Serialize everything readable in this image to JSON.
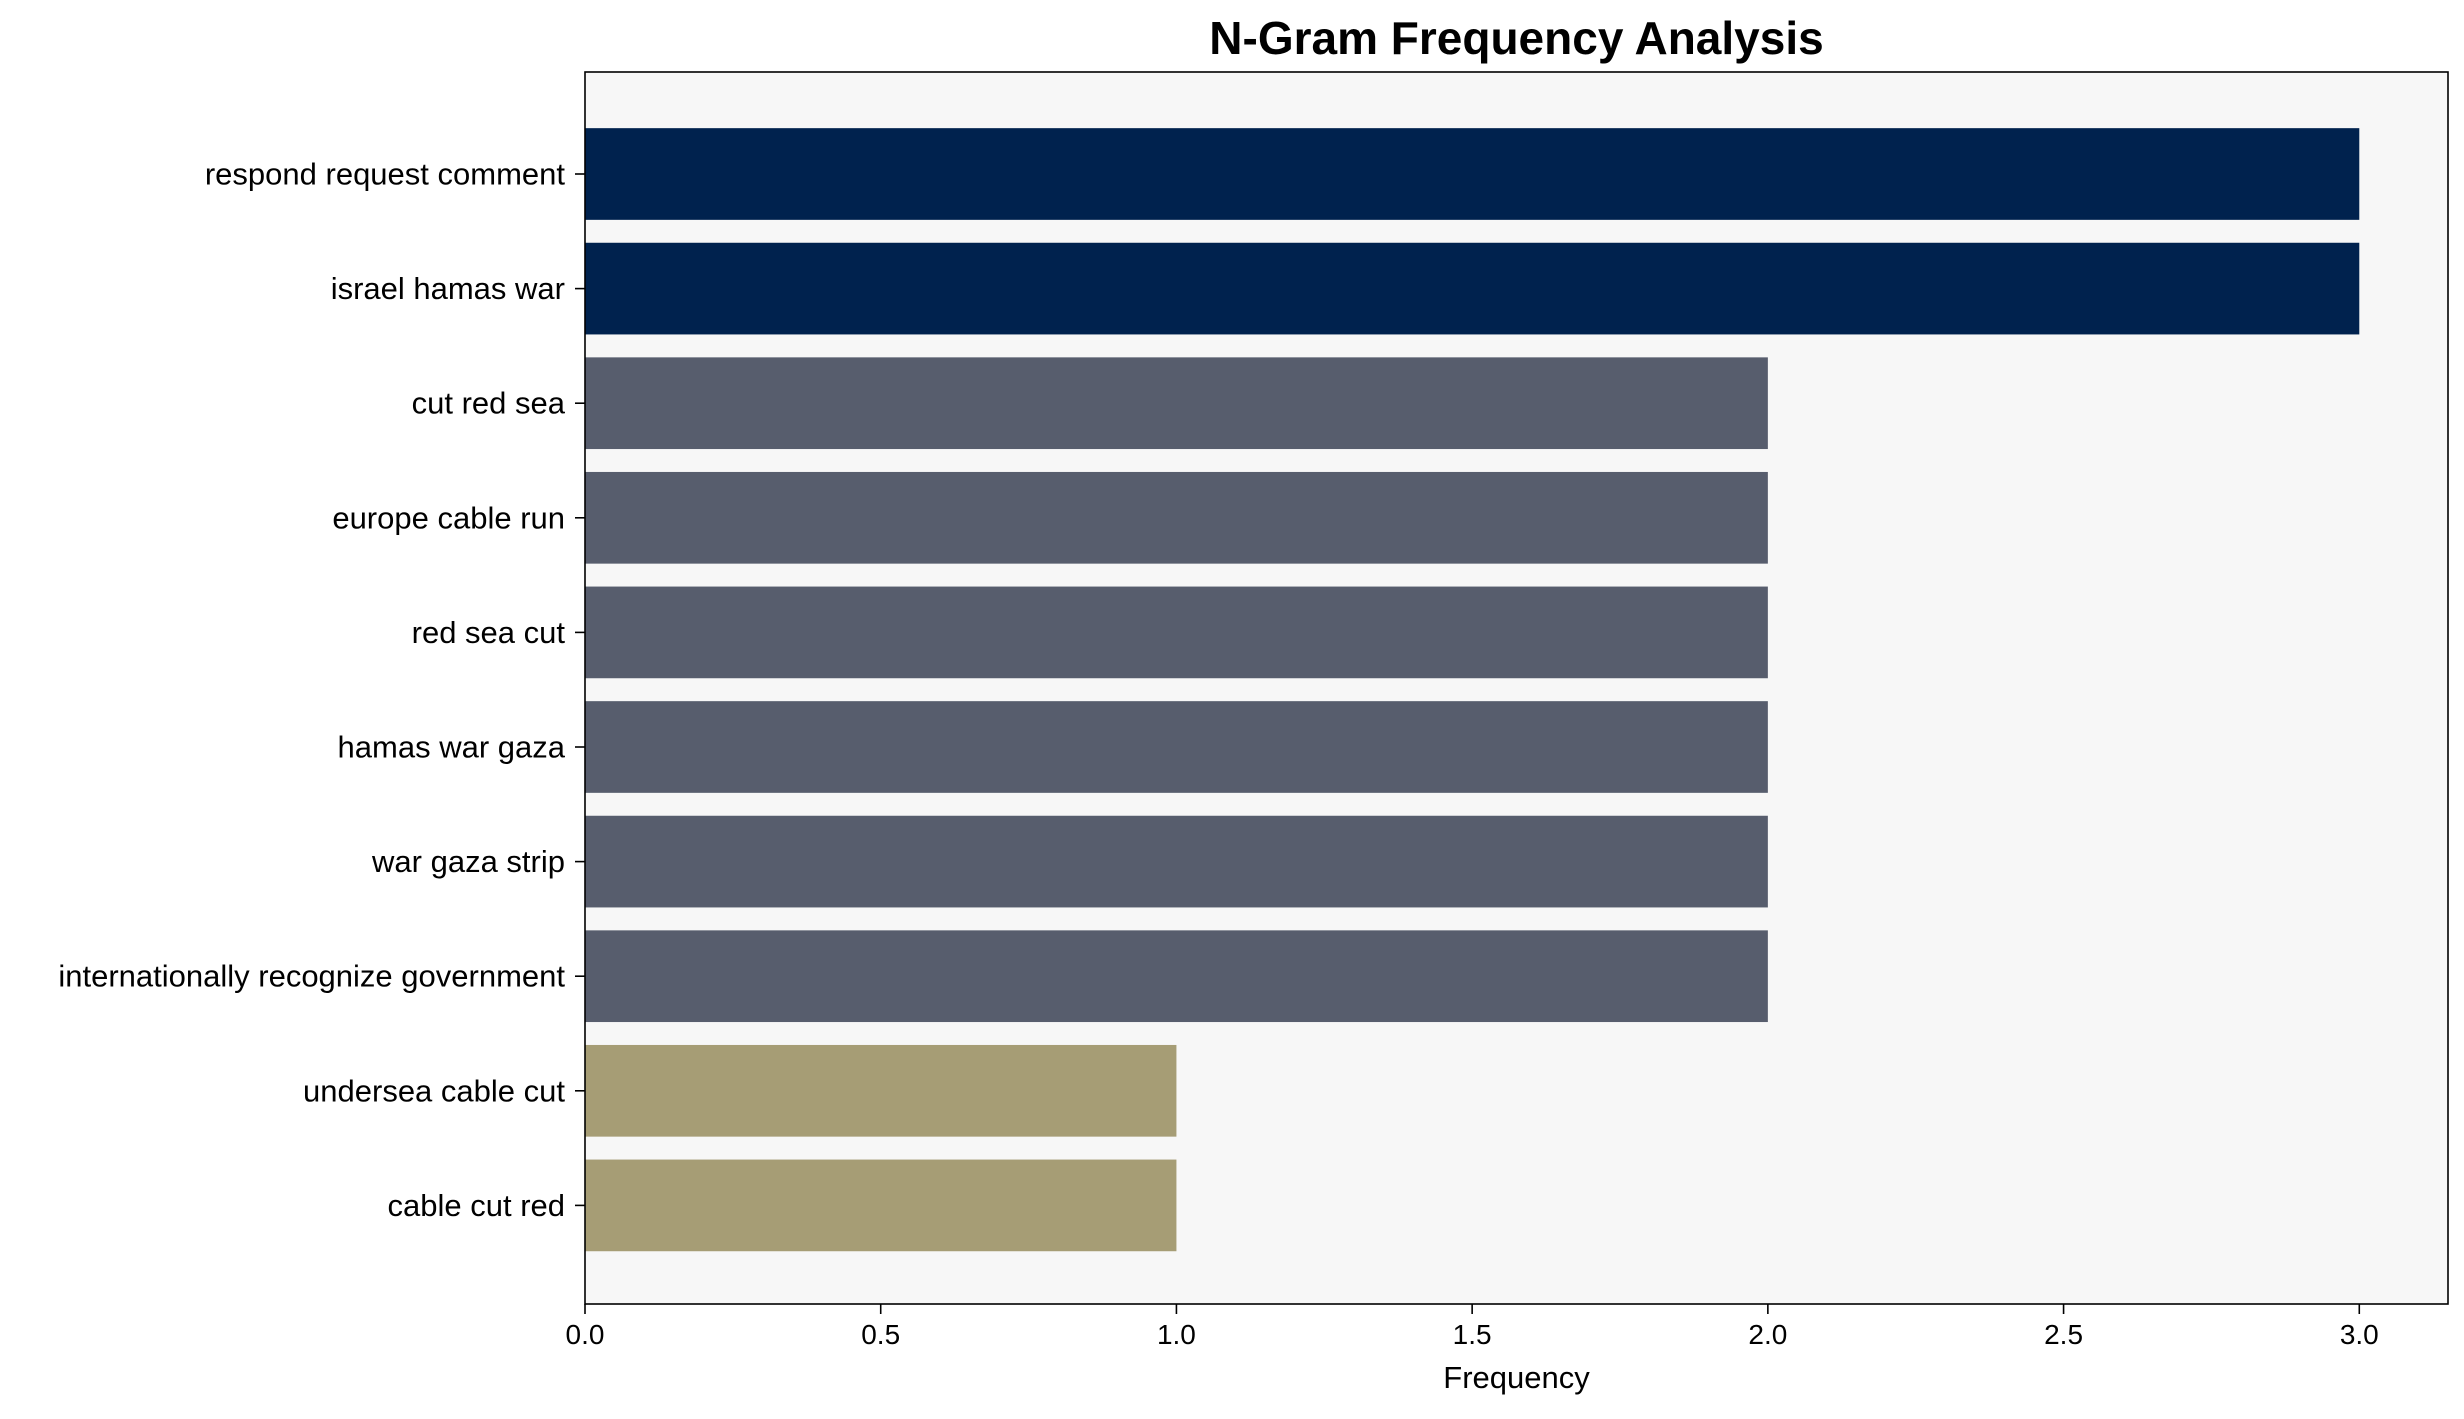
{
  "chart_data": {
    "type": "bar",
    "orientation": "horizontal",
    "title": "N-Gram Frequency Analysis",
    "xlabel": "Frequency",
    "ylabel": "",
    "xlim": [
      0,
      3.15
    ],
    "xticks": [
      "0.0",
      "0.5",
      "1.0",
      "1.5",
      "2.0",
      "2.5",
      "3.0"
    ],
    "xtick_values": [
      0,
      0.5,
      1.0,
      1.5,
      2.0,
      2.5,
      3.0
    ],
    "grid": false,
    "legend": "none",
    "categories": [
      "respond request comment",
      "israel hamas war",
      "cut red sea",
      "europe cable run",
      "red sea cut",
      "hamas war gaza",
      "war gaza strip",
      "internationally recognize government",
      "undersea cable cut",
      "cable cut red"
    ],
    "values": [
      3,
      3,
      2,
      2,
      2,
      2,
      2,
      2,
      1,
      1
    ],
    "bar_colors": [
      "#00224e",
      "#00224e",
      "#575d6d",
      "#575d6d",
      "#575d6d",
      "#575d6d",
      "#575d6d",
      "#575d6d",
      "#a69d75",
      "#a69d75"
    ],
    "plot_background": "#f7f7f7"
  }
}
